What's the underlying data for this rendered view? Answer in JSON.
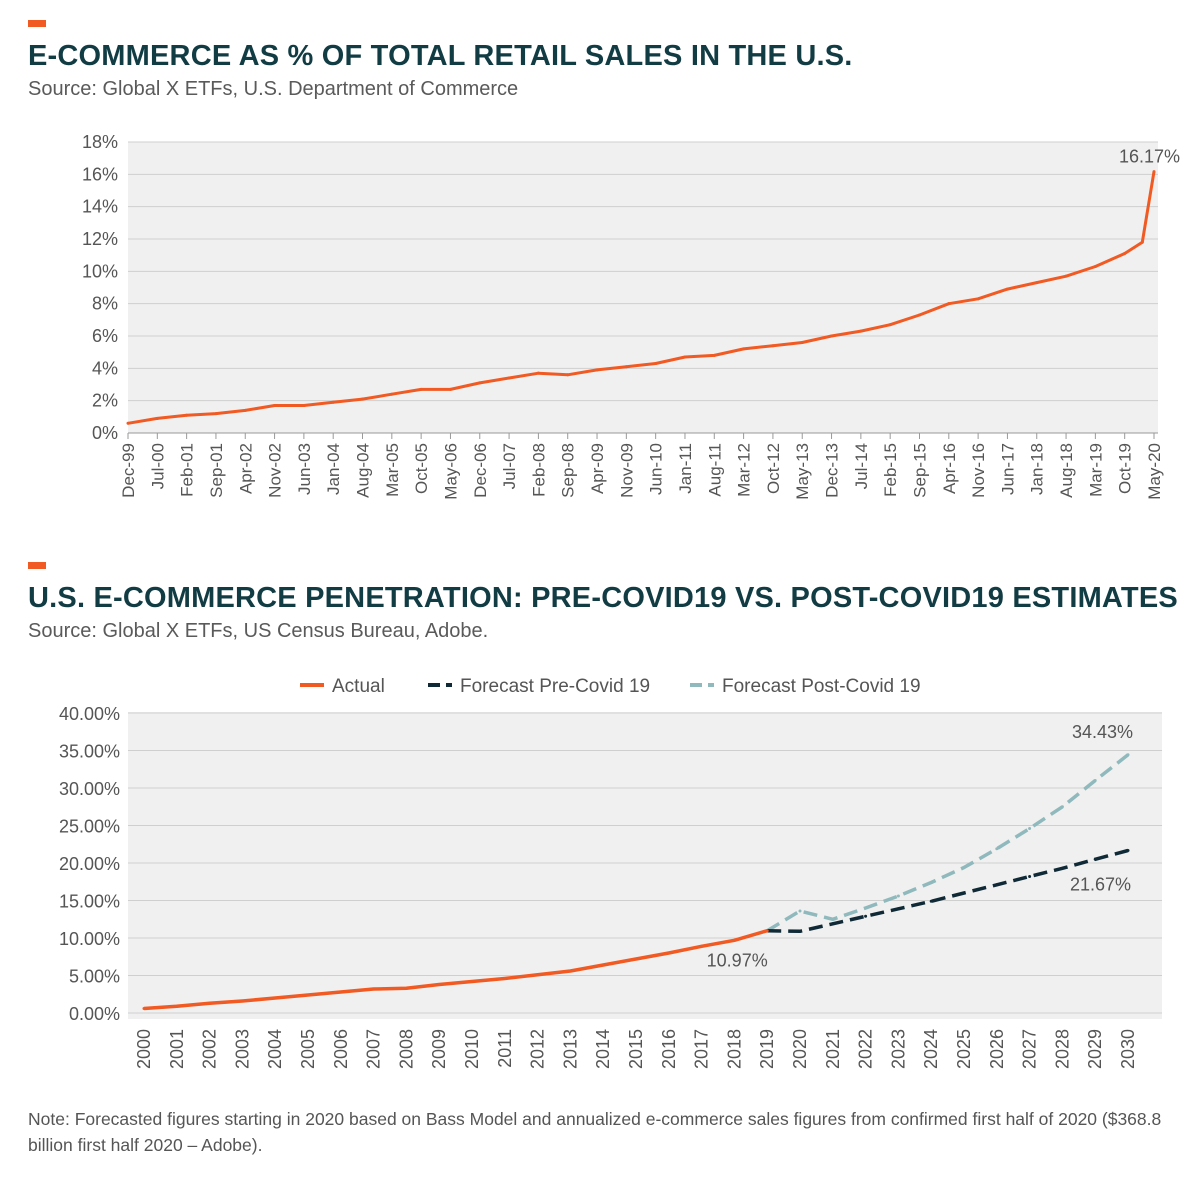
{
  "colors": {
    "accent": "#f15a22",
    "title": "#123c44",
    "plot_bg": "#f0f0f0",
    "actual": "#f15a22",
    "pre_covid": "#0f2a36",
    "post_covid": "#8fb9bc"
  },
  "chart1": {
    "title": "E-COMMERCE AS % OF TOTAL RETAIL SALES IN THE U.S.",
    "source": "Source: Global X ETFs, U.S. Department of Commerce"
  },
  "chart2": {
    "title": "U.S. E-COMMERCE PENETRATION: PRE-COVID19 VS. POST-COVID19 ESTIMATES",
    "source": "Source: Global X ETFs, US Census Bureau, Adobe."
  },
  "note": "Note: Forecasted figures starting in 2020 based on Bass Model and annualized e-commerce sales figures from confirmed first half of 2020 ($368.8 billion first half 2020 – Adobe).",
  "chart_data": [
    {
      "type": "line",
      "title": "E-COMMERCE AS % OF TOTAL RETAIL SALES IN THE U.S.",
      "ylim": [
        0,
        18
      ],
      "y_ticks": [
        "0%",
        "2%",
        "4%",
        "6%",
        "8%",
        "10%",
        "12%",
        "14%",
        "16%",
        "18%"
      ],
      "x_ticks": [
        "Dec-99",
        "Jul-00",
        "Feb-01",
        "Sep-01",
        "Apr-02",
        "Nov-02",
        "Jun-03",
        "Jan-04",
        "Aug-04",
        "Mar-05",
        "Oct-05",
        "May-06",
        "Dec-06",
        "Jul-07",
        "Feb-08",
        "Sep-08",
        "Apr-09",
        "Nov-09",
        "Jun-10",
        "Jan-11",
        "Aug-11",
        "Mar-12",
        "Oct-12",
        "May-13",
        "Dec-13",
        "Jul-14",
        "Feb-15",
        "Sep-15",
        "Apr-16",
        "Nov-16",
        "Jun-17",
        "Jan-18",
        "Aug-18",
        "Mar-19",
        "Oct-19",
        "May-20"
      ],
      "grid": true,
      "series": [
        {
          "x": [
            "Dec-99",
            "Jul-00",
            "Feb-01",
            "Sep-01",
            "Apr-02",
            "Nov-02",
            "Jun-03",
            "Jan-04",
            "Aug-04",
            "Mar-05",
            "Oct-05",
            "May-06",
            "Dec-06",
            "Jul-07",
            "Feb-08",
            "Sep-08",
            "Apr-09",
            "Nov-09",
            "Jun-10",
            "Jan-11",
            "Aug-11",
            "Mar-12",
            "Oct-12",
            "May-13",
            "Dec-13",
            "Jul-14",
            "Feb-15",
            "Sep-15",
            "Apr-16",
            "Nov-16",
            "Jun-17",
            "Jan-18",
            "Aug-18",
            "Mar-19",
            "Oct-19",
            "Feb-20",
            "May-20"
          ],
          "values": [
            0.6,
            0.9,
            1.1,
            1.2,
            1.4,
            1.7,
            1.7,
            1.9,
            2.1,
            2.4,
            2.7,
            2.7,
            3.1,
            3.4,
            3.7,
            3.6,
            3.9,
            4.1,
            4.3,
            4.7,
            4.8,
            5.2,
            5.4,
            5.6,
            6.0,
            6.3,
            6.7,
            7.3,
            8.0,
            8.3,
            8.9,
            9.3,
            9.7,
            10.3,
            11.1,
            11.8,
            16.17
          ],
          "color": "#f15a22"
        }
      ],
      "annotations": [
        {
          "x": "May-20",
          "y": 16.17,
          "text": "16.17%"
        }
      ]
    },
    {
      "type": "line",
      "title": "U.S. E-COMMERCE PENETRATION: PRE-COVID19 VS. POST-COVID19 ESTIMATES",
      "ylim": [
        0,
        40
      ],
      "y_ticks": [
        "0.00%",
        "5.00%",
        "10.00%",
        "15.00%",
        "20.00%",
        "25.00%",
        "30.00%",
        "35.00%",
        "40.00%"
      ],
      "categories": [
        "2000",
        "2001",
        "2002",
        "2003",
        "2004",
        "2005",
        "2006",
        "2007",
        "2008",
        "2009",
        "2010",
        "2011",
        "2012",
        "2013",
        "2014",
        "2015",
        "2016",
        "2017",
        "2018",
        "2019",
        "2020",
        "2021",
        "2022",
        "2023",
        "2024",
        "2025",
        "2026",
        "2027",
        "2028",
        "2029",
        "2030"
      ],
      "legend_position": "top",
      "grid": true,
      "series": [
        {
          "name": "Actual",
          "color": "#f15a22",
          "dash": "solid",
          "x": [
            "2000",
            "2001",
            "2002",
            "2003",
            "2004",
            "2005",
            "2006",
            "2007",
            "2008",
            "2009",
            "2010",
            "2011",
            "2012",
            "2013",
            "2014",
            "2015",
            "2016",
            "2017",
            "2018",
            "2019"
          ],
          "values": [
            0.6,
            0.9,
            1.3,
            1.6,
            2.0,
            2.4,
            2.8,
            3.2,
            3.3,
            3.8,
            4.2,
            4.6,
            5.1,
            5.6,
            6.4,
            7.2,
            8.0,
            8.9,
            9.7,
            10.97
          ]
        },
        {
          "name": "Forecast Pre-Covid 19",
          "color": "#0f2a36",
          "dash": "dashed",
          "x": [
            "2019",
            "2020",
            "2021",
            "2022",
            "2023",
            "2024",
            "2025",
            "2026",
            "2027",
            "2028",
            "2029",
            "2030"
          ],
          "values": [
            10.97,
            10.9,
            11.9,
            12.9,
            13.9,
            14.9,
            16.0,
            17.1,
            18.2,
            19.3,
            20.5,
            21.67
          ]
        },
        {
          "name": "Forecast Post-Covid 19",
          "color": "#8fb9bc",
          "dash": "dashed",
          "x": [
            "2019",
            "2020",
            "2021",
            "2022",
            "2023",
            "2024",
            "2025",
            "2026",
            "2027",
            "2028",
            "2029",
            "2030"
          ],
          "values": [
            10.97,
            13.6,
            12.5,
            14.0,
            15.6,
            17.4,
            19.4,
            21.9,
            24.6,
            27.5,
            31.0,
            34.43
          ]
        }
      ],
      "annotations": [
        {
          "x": "2030",
          "y": 34.43,
          "text": "34.43%"
        },
        {
          "x": "2030",
          "y": 21.67,
          "text": "21.67%"
        },
        {
          "x": "2019",
          "y": 10.97,
          "text": "10.97%"
        }
      ]
    }
  ]
}
